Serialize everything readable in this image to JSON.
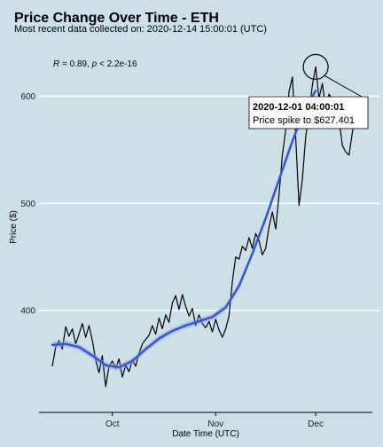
{
  "chart_data": {
    "type": "line",
    "title": "Price Change Over Time - ETH",
    "subtitle": "Most recent data collected on: 2020-12-14 15:00:01 (UTC)",
    "xlabel": "Date Time (UTC)",
    "ylabel": "Price ($)",
    "x_range": [
      "2020-09-09",
      "2020-12-18"
    ],
    "ylim": [
      305,
      655
    ],
    "x_ticks": [
      {
        "date": "2020-10-01",
        "label": "Oct"
      },
      {
        "date": "2020-11-01",
        "label": "Nov"
      },
      {
        "date": "2020-12-01",
        "label": "Dec"
      }
    ],
    "y_ticks": [
      400,
      500,
      600
    ],
    "grid": "horizontal",
    "correlation_annotation": {
      "r_symbol": "R",
      "r_value": " = 0.89, ",
      "p_symbol": "p",
      "p_value": " < 2.2e-16"
    },
    "series": [
      {
        "kind": "price",
        "color": "#000000",
        "points": [
          [
            "2020-09-13",
            348
          ],
          [
            "2020-09-14",
            366
          ],
          [
            "2020-09-15",
            372
          ],
          [
            "2020-09-16",
            364
          ],
          [
            "2020-09-17",
            385
          ],
          [
            "2020-09-18",
            376
          ],
          [
            "2020-09-19",
            383
          ],
          [
            "2020-09-20",
            369
          ],
          [
            "2020-09-21",
            378
          ],
          [
            "2020-09-22",
            388
          ],
          [
            "2020-09-23",
            375
          ],
          [
            "2020-09-24",
            386
          ],
          [
            "2020-09-25",
            372
          ],
          [
            "2020-09-26",
            354
          ],
          [
            "2020-09-27",
            342
          ],
          [
            "2020-09-28",
            358
          ],
          [
            "2020-09-29",
            329
          ],
          [
            "2020-09-30",
            348
          ],
          [
            "2020-10-01",
            353
          ],
          [
            "2020-10-02",
            346
          ],
          [
            "2020-10-03",
            355
          ],
          [
            "2020-10-04",
            338
          ],
          [
            "2020-10-05",
            349
          ],
          [
            "2020-10-06",
            343
          ],
          [
            "2020-10-07",
            354
          ],
          [
            "2020-10-08",
            348
          ],
          [
            "2020-10-09",
            360
          ],
          [
            "2020-10-10",
            369
          ],
          [
            "2020-10-11",
            373
          ],
          [
            "2020-10-12",
            377
          ],
          [
            "2020-10-13",
            386
          ],
          [
            "2020-10-14",
            378
          ],
          [
            "2020-10-15",
            393
          ],
          [
            "2020-10-16",
            383
          ],
          [
            "2020-10-17",
            396
          ],
          [
            "2020-10-18",
            389
          ],
          [
            "2020-10-19",
            407
          ],
          [
            "2020-10-20",
            414
          ],
          [
            "2020-10-21",
            401
          ],
          [
            "2020-10-22",
            415
          ],
          [
            "2020-10-23",
            404
          ],
          [
            "2020-10-24",
            395
          ],
          [
            "2020-10-25",
            402
          ],
          [
            "2020-10-26",
            386
          ],
          [
            "2020-10-27",
            396
          ],
          [
            "2020-10-28",
            388
          ],
          [
            "2020-10-29",
            384
          ],
          [
            "2020-10-30",
            390
          ],
          [
            "2020-10-31",
            380
          ],
          [
            "2020-11-01",
            392
          ],
          [
            "2020-11-02",
            382
          ],
          [
            "2020-11-03",
            375
          ],
          [
            "2020-11-04",
            383
          ],
          [
            "2020-11-05",
            395
          ],
          [
            "2020-11-06",
            427
          ],
          [
            "2020-11-07",
            450
          ],
          [
            "2020-11-08",
            448
          ],
          [
            "2020-11-09",
            460
          ],
          [
            "2020-11-10",
            456
          ],
          [
            "2020-11-11",
            468
          ],
          [
            "2020-11-12",
            458
          ],
          [
            "2020-11-13",
            472
          ],
          [
            "2020-11-14",
            465
          ],
          [
            "2020-11-15",
            452
          ],
          [
            "2020-11-16",
            458
          ],
          [
            "2020-11-17",
            478
          ],
          [
            "2020-11-18",
            492
          ],
          [
            "2020-11-19",
            476
          ],
          [
            "2020-11-20",
            508
          ],
          [
            "2020-11-21",
            545
          ],
          [
            "2020-11-22",
            568
          ],
          [
            "2020-11-23",
            604
          ],
          [
            "2020-11-24",
            618
          ],
          [
            "2020-11-25",
            562
          ],
          [
            "2020-11-26",
            498
          ],
          [
            "2020-11-27",
            522
          ],
          [
            "2020-11-28",
            562
          ],
          [
            "2020-11-29",
            585
          ],
          [
            "2020-11-30",
            610
          ],
          [
            "2020-12-01",
            627.401
          ],
          [
            "2020-12-02",
            598
          ],
          [
            "2020-12-03",
            612
          ],
          [
            "2020-12-04",
            588
          ],
          [
            "2020-12-05",
            602
          ],
          [
            "2020-12-06",
            597
          ],
          [
            "2020-12-07",
            590
          ],
          [
            "2020-12-08",
            578
          ],
          [
            "2020-12-09",
            554
          ],
          [
            "2020-12-10",
            548
          ],
          [
            "2020-12-11",
            545
          ],
          [
            "2020-12-12",
            566
          ],
          [
            "2020-12-13",
            585
          ],
          [
            "2020-12-14",
            582
          ]
        ]
      },
      {
        "kind": "smooth",
        "color": "#3355dd",
        "points": [
          [
            "2020-09-13",
            368
          ],
          [
            "2020-09-17",
            369
          ],
          [
            "2020-09-21",
            366
          ],
          [
            "2020-09-25",
            358
          ],
          [
            "2020-09-29",
            349
          ],
          [
            "2020-10-03",
            347
          ],
          [
            "2020-10-07",
            353
          ],
          [
            "2020-10-11",
            364
          ],
          [
            "2020-10-15",
            374
          ],
          [
            "2020-10-19",
            381
          ],
          [
            "2020-10-23",
            386
          ],
          [
            "2020-10-27",
            390
          ],
          [
            "2020-10-31",
            394
          ],
          [
            "2020-11-04",
            403
          ],
          [
            "2020-11-08",
            423
          ],
          [
            "2020-11-12",
            453
          ],
          [
            "2020-11-16",
            486
          ],
          [
            "2020-11-20",
            522
          ],
          [
            "2020-11-24",
            558
          ],
          [
            "2020-11-28",
            590
          ],
          [
            "2020-12-01",
            605
          ]
        ]
      }
    ],
    "highlight": {
      "date": "2020-12-01",
      "time_label": "2020-12-01 04:00:01",
      "price": 627.401,
      "text": "Price spike to $627.401"
    }
  }
}
